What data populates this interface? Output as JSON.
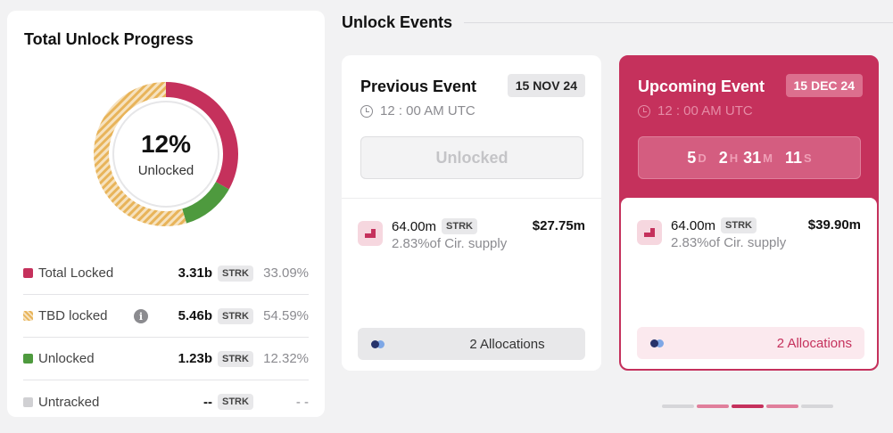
{
  "progress": {
    "title": "Total Unlock Progress",
    "percent": "12%",
    "subtitle": "Unlocked",
    "segments": [
      {
        "name": "Total Locked",
        "fraction": 0.3309,
        "color": "#c5315c"
      },
      {
        "name": "Unlocked",
        "fraction": 0.1232,
        "color": "#4e9a3e"
      },
      {
        "name": "TBD locked",
        "fraction": 0.5459,
        "color": "#e8b45a",
        "pattern": "striped"
      }
    ],
    "legend": [
      {
        "label": "Total Locked",
        "value": "3.31b",
        "unit": "STRK",
        "pct": "33.09%",
        "color": "#c5315c"
      },
      {
        "label": "TBD locked",
        "value": "5.46b",
        "unit": "STRK",
        "pct": "54.59%",
        "color": "#e8b45a",
        "info_icon": "info-icon"
      },
      {
        "label": "Unlocked",
        "value": "1.23b",
        "unit": "STRK",
        "pct": "12.32%",
        "color": "#4e9a3e"
      },
      {
        "label": "Untracked",
        "value": "--",
        "unit": "STRK",
        "pct": "- -",
        "color": "#d0d0d3"
      }
    ]
  },
  "events": {
    "title": "Unlock Events",
    "previous": {
      "title": "Previous Event",
      "date": "15 NOV 24",
      "time": "12 : 00 AM UTC",
      "status": "Unlocked",
      "amount": "64.00m",
      "unit": "STRK",
      "usd": "$27.75m",
      "supply": "2.83%of Cir. supply",
      "allocations": "2 Allocations"
    },
    "upcoming": {
      "title": "Upcoming Event",
      "date": "15 DEC 24",
      "time": "12 : 00 AM UTC",
      "countdown": {
        "days": "5",
        "days_unit": "D",
        "hours": "2",
        "hours_unit": "H",
        "minutes": "31",
        "minutes_unit": "M",
        "seconds": "11",
        "seconds_unit": "S"
      },
      "amount": "64.00m",
      "unit": "STRK",
      "usd": "$39.90m",
      "supply": "2.83%of Cir. supply",
      "allocations": "2 Allocations"
    }
  },
  "pager": {
    "count": 5,
    "active_index": 2,
    "colors": [
      "#d6d6d9",
      "#e07f9b",
      "#c5315c",
      "#e07f9b",
      "#d6d6d9"
    ]
  }
}
